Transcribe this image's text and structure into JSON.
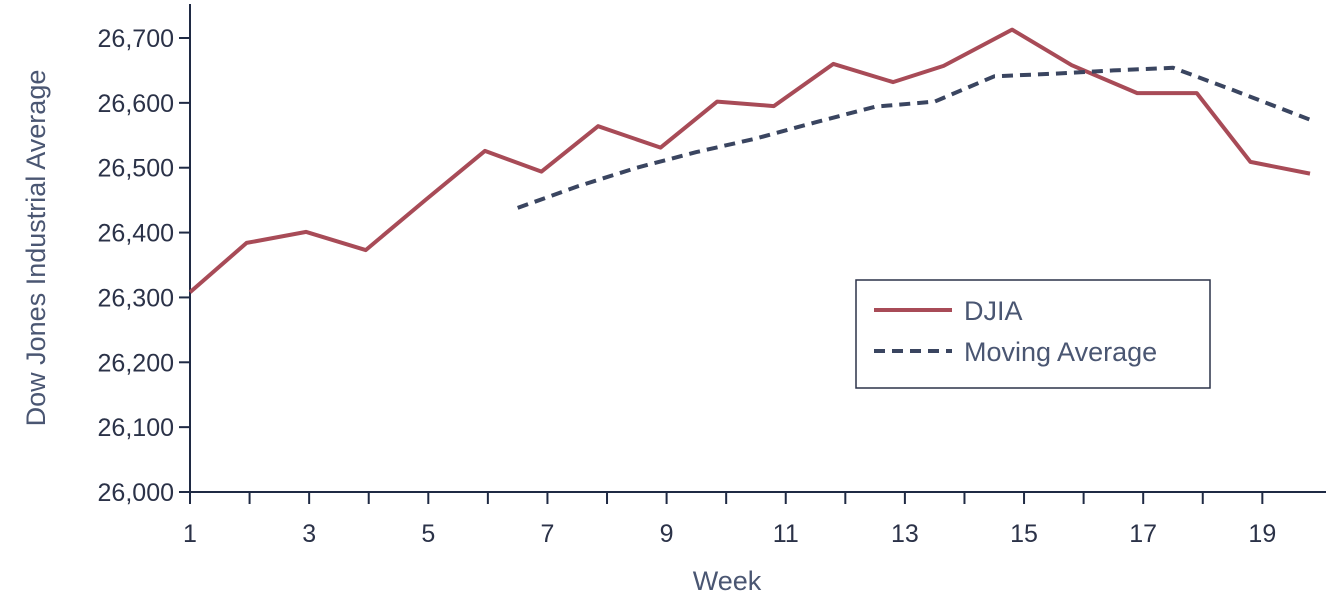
{
  "chart_data": {
    "type": "line",
    "xlabel": "Week",
    "ylabel": "Dow Jones Industrial Average",
    "xlim": [
      1,
      19.8
    ],
    "ylim": [
      26000,
      26700
    ],
    "x_ticks": [
      1,
      2,
      3,
      4,
      5,
      6,
      7,
      8,
      9,
      10,
      11,
      12,
      13,
      14,
      15,
      16,
      17,
      18,
      19
    ],
    "x_tick_labels": [
      "1",
      "3",
      "5",
      "7",
      "9",
      "11",
      "13",
      "15",
      "17",
      "19"
    ],
    "x_tick_label_values": [
      1,
      3,
      5,
      7,
      9,
      11,
      13,
      15,
      17,
      19
    ],
    "y_ticks": [
      26000,
      26100,
      26200,
      26300,
      26400,
      26500,
      26600,
      26700
    ],
    "y_tick_labels": [
      "26,000",
      "26,100",
      "26,200",
      "26,300",
      "26,400",
      "26,500",
      "26,600",
      "26,700"
    ],
    "grid": false,
    "legend_position": "center-right",
    "series": [
      {
        "name": "DJIA",
        "style": "solid",
        "color": "#a84b57",
        "points": [
          [
            1,
            26308
          ],
          [
            1.95,
            26384
          ],
          [
            2.95,
            26401
          ],
          [
            3.95,
            26373
          ],
          [
            4.95,
            26450
          ],
          [
            5.95,
            26526
          ],
          [
            6.9,
            26494
          ],
          [
            7.85,
            26564
          ],
          [
            8.9,
            26531
          ],
          [
            9.85,
            26602
          ],
          [
            10.8,
            26595
          ],
          [
            11.8,
            26660
          ],
          [
            12.8,
            26632
          ],
          [
            13.65,
            26657
          ],
          [
            14.8,
            26713
          ],
          [
            15.8,
            26658
          ],
          [
            16.9,
            26615
          ],
          [
            17.9,
            26615
          ],
          [
            18.8,
            26509
          ],
          [
            19.8,
            26491
          ]
        ]
      },
      {
        "name": "Moving Average",
        "style": "dashed",
        "color": "#3a4560",
        "points": [
          [
            6.5,
            26438
          ],
          [
            7.5,
            26471
          ],
          [
            8.5,
            26500
          ],
          [
            9.5,
            26524
          ],
          [
            10.5,
            26545
          ],
          [
            11.5,
            26570
          ],
          [
            12.5,
            26594
          ],
          [
            13.5,
            26602
          ],
          [
            14.5,
            26641
          ],
          [
            15.5,
            26645
          ],
          [
            16.5,
            26650
          ],
          [
            17.5,
            26654
          ],
          [
            18.5,
            26620
          ],
          [
            19.8,
            26574
          ]
        ]
      }
    ]
  }
}
